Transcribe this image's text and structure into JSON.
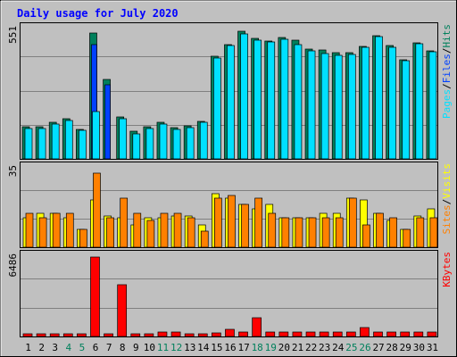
{
  "colors": {
    "background": "#c0c0c0",
    "plot_bg": "#c0c0c0",
    "title": "#0000ff",
    "hits": "#00805c",
    "files": "#0040ff",
    "pages": "#00e0ff",
    "visits": "#ffff00",
    "sites": "#ff8000",
    "kbytes": "#ff0000",
    "weekend_label": "#00805c",
    "gridline": "#808080"
  },
  "chart_data": [
    {
      "type": "bar",
      "title": "Daily usage for July 2020",
      "panel": "hits-files-pages",
      "ylabel": {
        "a": "Pages",
        "b": "Files",
        "c": "Hits",
        "sep": "/"
      },
      "ymax_label": "551",
      "ylim": [
        0,
        551
      ],
      "categories": [
        "1",
        "2",
        "3",
        "4",
        "5",
        "6",
        "7",
        "8",
        "9",
        "10",
        "11",
        "12",
        "13",
        "14",
        "15",
        "16",
        "17",
        "18",
        "19",
        "20",
        "21",
        "22",
        "23",
        "24",
        "25",
        "26",
        "27",
        "28",
        "29",
        "30",
        "31"
      ],
      "weekend_days": [
        "4",
        "5",
        "11",
        "12",
        "18",
        "19",
        "25",
        "26"
      ],
      "series": [
        {
          "name": "Hits",
          "values": [
            138,
            136,
            157,
            171,
            126,
            536,
            338,
            177,
            118,
            138,
            157,
            134,
            142,
            161,
            438,
            488,
            543,
            512,
            503,
            517,
            504,
            468,
            465,
            452,
            453,
            479,
            524,
            483,
            423,
            494,
            461
          ]
        },
        {
          "name": "Files",
          "values": [
            0,
            0,
            0,
            0,
            0,
            485,
            315,
            0,
            0,
            0,
            0,
            0,
            0,
            0,
            0,
            0,
            0,
            0,
            0,
            0,
            0,
            0,
            0,
            0,
            0,
            0,
            0,
            0,
            0,
            0,
            0
          ]
        },
        {
          "name": "Pages",
          "values": [
            130,
            130,
            149,
            164,
            122,
            200,
            0,
            170,
            108,
            130,
            149,
            126,
            134,
            157,
            428,
            484,
            533,
            505,
            497,
            510,
            488,
            460,
            448,
            441,
            446,
            476,
            520,
            475,
            419,
            489,
            455
          ]
        }
      ]
    },
    {
      "type": "bar",
      "panel": "visits-sites",
      "ylabel": {
        "a": "Sites",
        "b": "Visits",
        "sep": "/"
      },
      "ymax_label": "35",
      "ylim": [
        0,
        35
      ],
      "series": [
        {
          "name": "Visits",
          "values": [
            13,
            15,
            15,
            13,
            8,
            21,
            14,
            13,
            10,
            13,
            13,
            14,
            14,
            10,
            24,
            22,
            19,
            17,
            19,
            13,
            13,
            13,
            15,
            15,
            22,
            21,
            15,
            12,
            8,
            14,
            17
          ]
        },
        {
          "name": "Sites",
          "values": [
            15,
            13,
            15,
            15,
            8,
            33,
            13,
            22,
            15,
            12,
            15,
            15,
            13,
            7,
            22,
            23,
            19,
            22,
            15,
            13,
            13,
            13,
            13,
            13,
            22,
            10,
            15,
            13,
            8,
            13,
            13
          ]
        }
      ]
    },
    {
      "type": "bar",
      "panel": "kbytes",
      "ylabel": {
        "a": "KBytes"
      },
      "ymax_label": "6486",
      "ylim": [
        0,
        6486
      ],
      "series": [
        {
          "name": "KBytes",
          "values": [
            200,
            170,
            170,
            170,
            150,
            6486,
            190,
            4250,
            190,
            190,
            400,
            400,
            180,
            180,
            300,
            580,
            400,
            1500,
            400,
            380,
            380,
            380,
            380,
            380,
            380,
            700,
            380,
            380,
            380,
            380,
            380
          ]
        }
      ]
    }
  ]
}
